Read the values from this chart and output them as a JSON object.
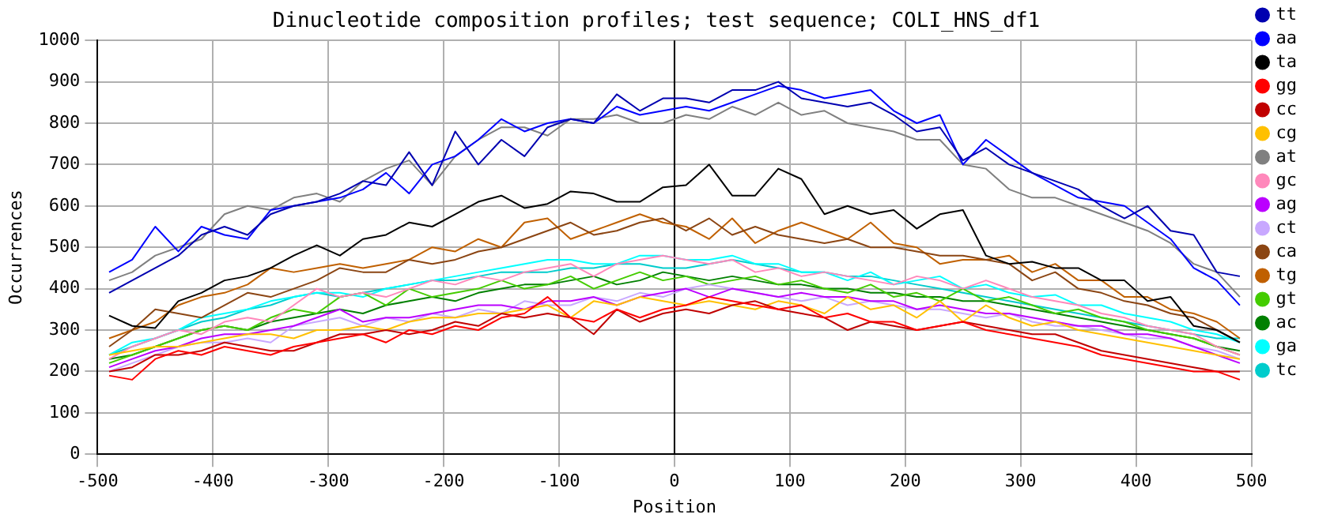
{
  "chart_data": {
    "type": "line",
    "title": "Dinucleotide composition profiles; test sequence; COLI_HNS_df1",
    "xlabel": "Position",
    "ylabel": "Occurrences",
    "x": [
      -490,
      -470,
      -450,
      -430,
      -410,
      -390,
      -370,
      -350,
      -330,
      -310,
      -290,
      -270,
      -250,
      -230,
      -210,
      -190,
      -170,
      -150,
      -130,
      -110,
      -90,
      -70,
      -50,
      -30,
      -10,
      10,
      30,
      50,
      70,
      90,
      110,
      130,
      150,
      170,
      190,
      210,
      230,
      250,
      270,
      290,
      310,
      330,
      350,
      370,
      390,
      410,
      430,
      450,
      470,
      490
    ],
    "xlim": [
      -500,
      500
    ],
    "xticks": [
      -500,
      -400,
      -300,
      -200,
      -100,
      0,
      100,
      200,
      300,
      400,
      500
    ],
    "ylim": [
      0,
      1000
    ],
    "yticks": [
      0,
      100,
      200,
      300,
      400,
      500,
      600,
      700,
      800,
      900,
      1000
    ],
    "grid": true,
    "legend": "right",
    "marker": "none",
    "line_style": "solid",
    "ref_lines": [
      {
        "axis": "x",
        "value": 0,
        "color": "#000000"
      }
    ],
    "series": [
      {
        "name": "tt",
        "color": "#0000b0",
        "values": [
          390,
          420,
          450,
          480,
          530,
          550,
          530,
          580,
          600,
          610,
          630,
          660,
          650,
          730,
          650,
          780,
          700,
          760,
          720,
          790,
          810,
          800,
          870,
          830,
          860,
          860,
          850,
          880,
          880,
          900,
          860,
          850,
          840,
          850,
          820,
          780,
          790,
          710,
          740,
          700,
          680,
          660,
          640,
          600,
          570,
          600,
          540,
          530,
          440,
          430
        ]
      },
      {
        "name": "aa",
        "color": "#0000ff",
        "values": [
          440,
          470,
          550,
          490,
          550,
          530,
          520,
          590,
          600,
          610,
          620,
          640,
          680,
          630,
          700,
          720,
          760,
          810,
          780,
          800,
          810,
          800,
          840,
          820,
          830,
          840,
          830,
          850,
          870,
          890,
          880,
          860,
          870,
          880,
          830,
          800,
          820,
          700,
          760,
          720,
          680,
          650,
          620,
          610,
          600,
          560,
          520,
          450,
          420,
          360
        ]
      },
      {
        "name": "ta",
        "color": "#000000",
        "values": [
          335,
          310,
          305,
          370,
          390,
          420,
          430,
          450,
          480,
          505,
          480,
          520,
          530,
          560,
          550,
          580,
          610,
          625,
          595,
          605,
          635,
          630,
          610,
          610,
          645,
          650,
          700,
          625,
          625,
          690,
          665,
          580,
          600,
          580,
          590,
          545,
          580,
          590,
          480,
          460,
          465,
          450,
          450,
          420,
          420,
          370,
          380,
          310,
          300,
          270
        ]
      },
      {
        "name": "gg",
        "color": "#ff0000",
        "values": [
          190,
          180,
          230,
          250,
          240,
          260,
          250,
          240,
          260,
          270,
          280,
          290,
          270,
          300,
          290,
          310,
          300,
          330,
          340,
          380,
          330,
          320,
          350,
          330,
          350,
          360,
          380,
          370,
          360,
          350,
          360,
          330,
          340,
          320,
          320,
          300,
          310,
          320,
          300,
          290,
          280,
          270,
          260,
          240,
          230,
          220,
          210,
          200,
          200,
          180
        ]
      },
      {
        "name": "cc",
        "color": "#c00000",
        "values": [
          200,
          210,
          240,
          240,
          250,
          270,
          260,
          250,
          250,
          270,
          290,
          290,
          300,
          290,
          300,
          320,
          310,
          340,
          330,
          340,
          330,
          290,
          350,
          320,
          340,
          350,
          340,
          360,
          370,
          350,
          340,
          330,
          300,
          320,
          310,
          300,
          310,
          320,
          310,
          300,
          290,
          290,
          270,
          250,
          240,
          230,
          220,
          210,
          200,
          200
        ]
      },
      {
        "name": "cg",
        "color": "#ffc000",
        "values": [
          240,
          250,
          260,
          260,
          270,
          280,
          290,
          290,
          280,
          300,
          300,
          310,
          300,
          320,
          330,
          330,
          340,
          340,
          350,
          360,
          330,
          370,
          360,
          380,
          370,
          360,
          370,
          360,
          350,
          370,
          360,
          340,
          380,
          350,
          360,
          330,
          370,
          320,
          360,
          330,
          310,
          320,
          300,
          290,
          280,
          270,
          260,
          250,
          240,
          230
        ]
      },
      {
        "name": "at",
        "color": "#808080",
        "values": [
          420,
          440,
          480,
          500,
          520,
          580,
          600,
          590,
          620,
          630,
          610,
          660,
          690,
          710,
          650,
          720,
          760,
          790,
          790,
          770,
          810,
          810,
          820,
          800,
          800,
          820,
          810,
          840,
          820,
          850,
          820,
          830,
          800,
          790,
          780,
          760,
          760,
          700,
          690,
          640,
          620,
          620,
          600,
          580,
          560,
          540,
          510,
          460,
          440,
          380
        ]
      },
      {
        "name": "gc",
        "color": "#ff88bb",
        "values": [
          230,
          260,
          280,
          300,
          290,
          320,
          330,
          320,
          360,
          400,
          380,
          390,
          380,
          400,
          420,
          410,
          430,
          420,
          440,
          450,
          460,
          430,
          460,
          470,
          480,
          470,
          460,
          470,
          440,
          450,
          430,
          440,
          430,
          420,
          410,
          430,
          420,
          400,
          420,
          400,
          380,
          370,
          360,
          340,
          330,
          310,
          300,
          290,
          260,
          240
        ]
      },
      {
        "name": "ag",
        "color": "#bb00ff",
        "values": [
          210,
          230,
          250,
          260,
          280,
          290,
          290,
          300,
          310,
          330,
          350,
          320,
          330,
          330,
          340,
          350,
          360,
          360,
          350,
          370,
          370,
          380,
          360,
          380,
          390,
          400,
          380,
          400,
          390,
          380,
          390,
          380,
          380,
          370,
          370,
          350,
          360,
          350,
          340,
          340,
          330,
          320,
          310,
          310,
          290,
          290,
          280,
          260,
          240,
          220
        ]
      },
      {
        "name": "ct",
        "color": "#c8a8ff",
        "values": [
          200,
          220,
          240,
          260,
          270,
          270,
          280,
          270,
          310,
          320,
          330,
          310,
          330,
          320,
          340,
          330,
          350,
          340,
          370,
          360,
          360,
          380,
          370,
          390,
          380,
          400,
          410,
          400,
          390,
          380,
          370,
          380,
          360,
          370,
          360,
          350,
          350,
          340,
          330,
          340,
          320,
          310,
          310,
          300,
          290,
          280,
          280,
          260,
          250,
          230
        ]
      },
      {
        "name": "ca",
        "color": "#8b4513",
        "values": [
          260,
          300,
          350,
          340,
          330,
          360,
          390,
          380,
          400,
          420,
          450,
          440,
          440,
          470,
          460,
          470,
          490,
          500,
          520,
          540,
          560,
          530,
          540,
          560,
          570,
          540,
          570,
          530,
          550,
          530,
          520,
          510,
          520,
          500,
          500,
          490,
          480,
          480,
          470,
          460,
          420,
          440,
          400,
          390,
          370,
          360,
          340,
          330,
          300,
          270
        ]
      },
      {
        "name": "tg",
        "color": "#c06000",
        "values": [
          280,
          300,
          320,
          360,
          380,
          390,
          410,
          450,
          440,
          450,
          460,
          450,
          460,
          470,
          500,
          490,
          520,
          500,
          560,
          570,
          520,
          540,
          560,
          580,
          560,
          550,
          520,
          570,
          510,
          540,
          560,
          540,
          520,
          560,
          510,
          500,
          460,
          470,
          470,
          480,
          440,
          460,
          420,
          420,
          380,
          380,
          350,
          340,
          320,
          280
        ]
      },
      {
        "name": "gt",
        "color": "#44cc00",
        "values": [
          220,
          240,
          260,
          280,
          300,
          310,
          300,
          330,
          350,
          340,
          380,
          390,
          360,
          400,
          380,
          390,
          400,
          420,
          400,
          410,
          430,
          400,
          420,
          440,
          420,
          430,
          410,
          420,
          430,
          410,
          420,
          400,
          390,
          410,
          380,
          390,
          370,
          400,
          370,
          380,
          360,
          340,
          350,
          330,
          320,
          300,
          290,
          280,
          260,
          240
        ]
      },
      {
        "name": "ac",
        "color": "#008000",
        "values": [
          230,
          240,
          260,
          280,
          300,
          310,
          300,
          320,
          330,
          340,
          350,
          340,
          360,
          370,
          380,
          370,
          390,
          400,
          410,
          410,
          420,
          430,
          410,
          420,
          440,
          430,
          420,
          430,
          420,
          410,
          410,
          400,
          400,
          390,
          390,
          380,
          380,
          370,
          370,
          360,
          350,
          340,
          330,
          320,
          310,
          300,
          290,
          280,
          260,
          250
        ]
      },
      {
        "name": "ga",
        "color": "#00ffff",
        "values": [
          240,
          270,
          280,
          300,
          330,
          340,
          350,
          370,
          380,
          390,
          390,
          380,
          400,
          410,
          420,
          430,
          440,
          450,
          460,
          470,
          470,
          460,
          460,
          480,
          480,
          470,
          470,
          480,
          460,
          460,
          440,
          440,
          420,
          440,
          410,
          420,
          430,
          400,
          410,
          390,
          380,
          385,
          360,
          360,
          340,
          330,
          320,
          300,
          290,
          270
        ]
      },
      {
        "name": "tc",
        "color": "#00cccc",
        "values": [
          240,
          260,
          280,
          300,
          320,
          330,
          350,
          360,
          380,
          390,
          380,
          390,
          400,
          410,
          420,
          420,
          430,
          440,
          440,
          440,
          450,
          450,
          460,
          460,
          450,
          450,
          460,
          470,
          460,
          450,
          440,
          440,
          430,
          430,
          420,
          410,
          400,
          390,
          380,
          370,
          360,
          350,
          340,
          330,
          320,
          310,
          300,
          290,
          280,
          280
        ]
      }
    ]
  }
}
